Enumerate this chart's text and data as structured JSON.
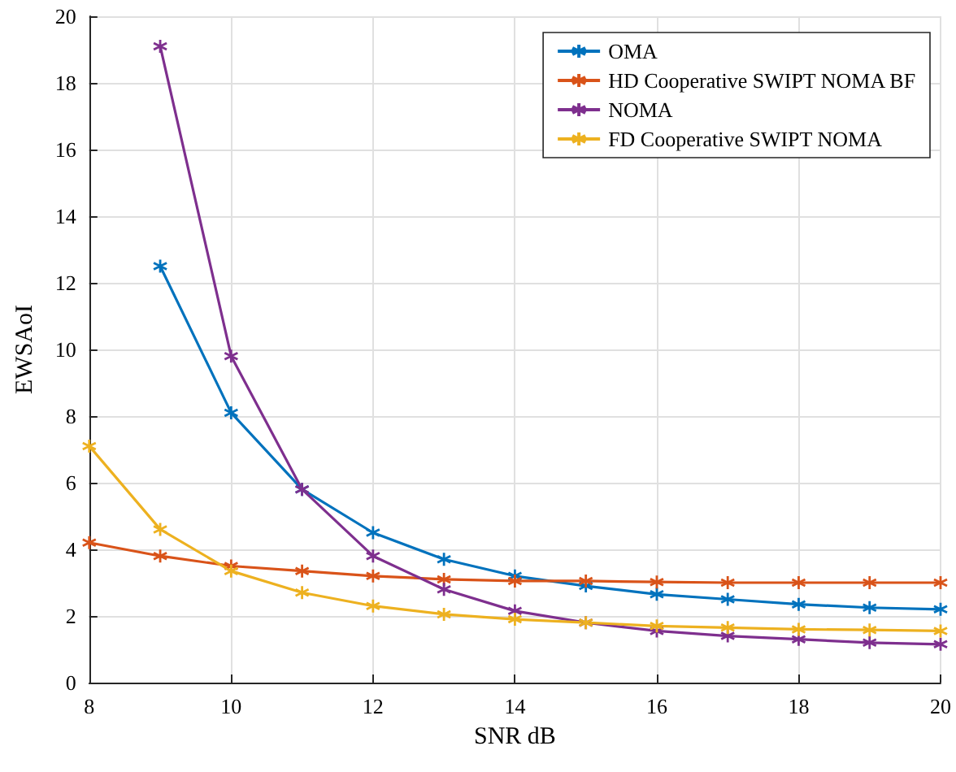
{
  "chart_data": {
    "type": "line",
    "xlabel": "SNR dB",
    "ylabel": "EWSAoI",
    "x": [
      8,
      9,
      10,
      11,
      12,
      13,
      14,
      15,
      16,
      17,
      18,
      19,
      20
    ],
    "series": [
      {
        "name": "OMA",
        "color": "#0072bd",
        "values": [
          null,
          12.5,
          8.1,
          5.8,
          4.5,
          3.7,
          3.2,
          2.9,
          2.65,
          2.5,
          2.35,
          2.25,
          2.2
        ]
      },
      {
        "name": "HD Cooperative SWIPT NOMA BF",
        "color": "#d95319",
        "values": [
          4.2,
          3.8,
          3.5,
          3.35,
          3.2,
          3.1,
          3.05,
          3.05,
          3.02,
          3.0,
          3.0,
          3.0,
          3.0
        ]
      },
      {
        "name": "NOMA",
        "color": "#7e2f8e",
        "values": [
          null,
          19.1,
          9.8,
          5.8,
          3.8,
          2.8,
          2.15,
          1.8,
          1.55,
          1.4,
          1.3,
          1.2,
          1.15
        ]
      },
      {
        "name": "FD Cooperative SWIPT NOMA",
        "color": "#edb120",
        "values": [
          7.1,
          4.6,
          3.35,
          2.7,
          2.3,
          2.05,
          1.9,
          1.8,
          1.7,
          1.65,
          1.6,
          1.58,
          1.55
        ]
      }
    ],
    "xlim": [
      8,
      20
    ],
    "xticks": [
      8,
      10,
      12,
      14,
      16,
      18,
      20
    ],
    "ylim": [
      0,
      20
    ],
    "yticks": [
      0,
      2,
      4,
      6,
      8,
      10,
      12,
      14,
      16,
      18,
      20
    ],
    "grid": true,
    "legend": "top right",
    "marker": "cross",
    "line_style": "solid"
  }
}
